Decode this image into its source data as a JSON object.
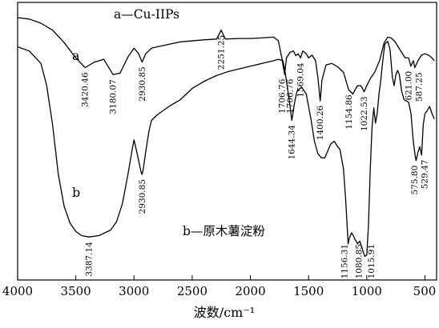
{
  "chart_data": {
    "type": "line",
    "xlabel": "波数/cm⁻¹",
    "xlim": [
      4000,
      400
    ],
    "xticks": [
      4000,
      3500,
      3000,
      2500,
      2000,
      1500,
      1000,
      500
    ],
    "ylim": [
      0,
      1
    ],
    "grid": false,
    "series": [
      {
        "name": "a",
        "legend": "a—Cu-IIPs",
        "color": "#000000",
        "points": [
          [
            4000,
            0.945
          ],
          [
            3900,
            0.94
          ],
          [
            3800,
            0.925
          ],
          [
            3700,
            0.9
          ],
          [
            3600,
            0.855
          ],
          [
            3500,
            0.8
          ],
          [
            3420,
            0.765
          ],
          [
            3340,
            0.785
          ],
          [
            3260,
            0.795
          ],
          [
            3180,
            0.74
          ],
          [
            3120,
            0.745
          ],
          [
            3050,
            0.805
          ],
          [
            3000,
            0.835
          ],
          [
            2960,
            0.815
          ],
          [
            2930,
            0.785
          ],
          [
            2900,
            0.815
          ],
          [
            2850,
            0.835
          ],
          [
            2800,
            0.84
          ],
          [
            2600,
            0.858
          ],
          [
            2400,
            0.865
          ],
          [
            2290,
            0.868
          ],
          [
            2251,
            0.9
          ],
          [
            2215,
            0.868
          ],
          [
            2100,
            0.87
          ],
          [
            2000,
            0.87
          ],
          [
            1900,
            0.872
          ],
          [
            1800,
            0.875
          ],
          [
            1760,
            0.862
          ],
          [
            1730,
            0.8
          ],
          [
            1706,
            0.74
          ],
          [
            1690,
            0.8
          ],
          [
            1660,
            0.82
          ],
          [
            1630,
            0.825
          ],
          [
            1610,
            0.808
          ],
          [
            1590,
            0.815
          ],
          [
            1569,
            0.8
          ],
          [
            1550,
            0.825
          ],
          [
            1520,
            0.815
          ],
          [
            1500,
            0.8
          ],
          [
            1470,
            0.81
          ],
          [
            1440,
            0.79
          ],
          [
            1420,
            0.73
          ],
          [
            1400,
            0.645
          ],
          [
            1385,
            0.72
          ],
          [
            1350,
            0.775
          ],
          [
            1300,
            0.78
          ],
          [
            1250,
            0.768
          ],
          [
            1200,
            0.748
          ],
          [
            1155,
            0.685
          ],
          [
            1120,
            0.67
          ],
          [
            1080,
            0.7
          ],
          [
            1050,
            0.7
          ],
          [
            1022,
            0.678
          ],
          [
            1000,
            0.7
          ],
          [
            970,
            0.725
          ],
          [
            930,
            0.75
          ],
          [
            890,
            0.79
          ],
          [
            850,
            0.855
          ],
          [
            820,
            0.875
          ],
          [
            790,
            0.872
          ],
          [
            760,
            0.86
          ],
          [
            730,
            0.84
          ],
          [
            700,
            0.82
          ],
          [
            670,
            0.8
          ],
          [
            640,
            0.8
          ],
          [
            621,
            0.77
          ],
          [
            600,
            0.79
          ],
          [
            587,
            0.765
          ],
          [
            560,
            0.79
          ],
          [
            530,
            0.81
          ],
          [
            500,
            0.815
          ],
          [
            470,
            0.81
          ],
          [
            440,
            0.8
          ],
          [
            420,
            0.79
          ]
        ]
      },
      {
        "name": "b",
        "legend": "b—原木薯淀粉",
        "color": "#000000",
        "points": [
          [
            4000,
            0.84
          ],
          [
            3900,
            0.825
          ],
          [
            3800,
            0.78
          ],
          [
            3750,
            0.7
          ],
          [
            3700,
            0.56
          ],
          [
            3650,
            0.38
          ],
          [
            3600,
            0.265
          ],
          [
            3550,
            0.205
          ],
          [
            3500,
            0.175
          ],
          [
            3450,
            0.16
          ],
          [
            3387,
            0.155
          ],
          [
            3300,
            0.16
          ],
          [
            3200,
            0.18
          ],
          [
            3150,
            0.21
          ],
          [
            3100,
            0.275
          ],
          [
            3050,
            0.385
          ],
          [
            3020,
            0.46
          ],
          [
            3000,
            0.505
          ],
          [
            2970,
            0.45
          ],
          [
            2940,
            0.39
          ],
          [
            2931,
            0.38
          ],
          [
            2920,
            0.4
          ],
          [
            2900,
            0.46
          ],
          [
            2870,
            0.54
          ],
          [
            2850,
            0.575
          ],
          [
            2800,
            0.595
          ],
          [
            2700,
            0.625
          ],
          [
            2600,
            0.65
          ],
          [
            2500,
            0.69
          ],
          [
            2400,
            0.715
          ],
          [
            2300,
            0.735
          ],
          [
            2200,
            0.75
          ],
          [
            2100,
            0.76
          ],
          [
            2000,
            0.77
          ],
          [
            1900,
            0.78
          ],
          [
            1800,
            0.79
          ],
          [
            1760,
            0.795
          ],
          [
            1720,
            0.79
          ],
          [
            1700,
            0.745
          ],
          [
            1670,
            0.66
          ],
          [
            1644,
            0.575
          ],
          [
            1620,
            0.64
          ],
          [
            1600,
            0.68
          ],
          [
            1560,
            0.695
          ],
          [
            1520,
            0.67
          ],
          [
            1480,
            0.58
          ],
          [
            1450,
            0.5
          ],
          [
            1420,
            0.455
          ],
          [
            1390,
            0.44
          ],
          [
            1360,
            0.44
          ],
          [
            1340,
            0.46
          ],
          [
            1310,
            0.49
          ],
          [
            1280,
            0.5
          ],
          [
            1250,
            0.48
          ],
          [
            1230,
            0.47
          ],
          [
            1200,
            0.4
          ],
          [
            1180,
            0.28
          ],
          [
            1160,
            0.13
          ],
          [
            1150,
            0.15
          ],
          [
            1130,
            0.17
          ],
          [
            1115,
            0.16
          ],
          [
            1100,
            0.145
          ],
          [
            1090,
            0.14
          ],
          [
            1080,
            0.13
          ],
          [
            1060,
            0.14
          ],
          [
            1040,
            0.115
          ],
          [
            1030,
            0.1
          ],
          [
            1016,
            0.085
          ],
          [
            1000,
            0.09
          ],
          [
            985,
            0.2
          ],
          [
            970,
            0.4
          ],
          [
            955,
            0.55
          ],
          [
            940,
            0.62
          ],
          [
            925,
            0.565
          ],
          [
            910,
            0.6
          ],
          [
            895,
            0.67
          ],
          [
            880,
            0.72
          ],
          [
            860,
            0.8
          ],
          [
            845,
            0.85
          ],
          [
            820,
            0.86
          ],
          [
            800,
            0.83
          ],
          [
            780,
            0.73
          ],
          [
            765,
            0.7
          ],
          [
            750,
            0.74
          ],
          [
            735,
            0.755
          ],
          [
            720,
            0.74
          ],
          [
            700,
            0.68
          ],
          [
            680,
            0.65
          ],
          [
            660,
            0.645
          ],
          [
            640,
            0.64
          ],
          [
            620,
            0.6
          ],
          [
            600,
            0.5
          ],
          [
            585,
            0.45
          ],
          [
            576,
            0.43
          ],
          [
            560,
            0.46
          ],
          [
            545,
            0.48
          ],
          [
            529,
            0.45
          ],
          [
            515,
            0.56
          ],
          [
            500,
            0.6
          ],
          [
            480,
            0.61
          ],
          [
            460,
            0.625
          ],
          [
            440,
            0.6
          ],
          [
            420,
            0.58
          ]
        ]
      }
    ],
    "annotations": [
      {
        "series": "a",
        "x": 3420.46,
        "text": "3420.46"
      },
      {
        "series": "a",
        "x": 3180.07,
        "text": "3180.07"
      },
      {
        "series": "a",
        "x": 2930.85,
        "text": "2930.85"
      },
      {
        "series": "a",
        "x": 2251.25,
        "text": "2251.25"
      },
      {
        "series": "a",
        "x": 1706.76,
        "text": "1706.76"
      },
      {
        "series": "a",
        "x": 1706.76,
        "text": "1706.76"
      },
      {
        "series": "a",
        "x": 1569.04,
        "text": "1569.04"
      },
      {
        "series": "a",
        "x": 1400.26,
        "text": "1400.26"
      },
      {
        "series": "a",
        "x": 1154.86,
        "text": "1154.86"
      },
      {
        "series": "a",
        "x": 1022.53,
        "text": "1022.53"
      },
      {
        "series": "a",
        "x": 621.0,
        "text": "621.00"
      },
      {
        "series": "a",
        "x": 587.25,
        "text": "587.25"
      },
      {
        "series": "b",
        "x": 3387.14,
        "text": "3387.14"
      },
      {
        "series": "b",
        "x": 2930.85,
        "text": "2930.85"
      },
      {
        "series": "b",
        "x": 1644.34,
        "text": "1644.34"
      },
      {
        "series": "b",
        "x": 1156.31,
        "text": "1156.31"
      },
      {
        "series": "b",
        "x": 1080.85,
        "text": "1080.85"
      },
      {
        "series": "b",
        "x": 1015.91,
        "text": "1015.91"
      },
      {
        "series": "b",
        "x": 575.8,
        "text": "575.80"
      },
      {
        "series": "b",
        "x": 529.47,
        "text": "529.47"
      }
    ]
  }
}
